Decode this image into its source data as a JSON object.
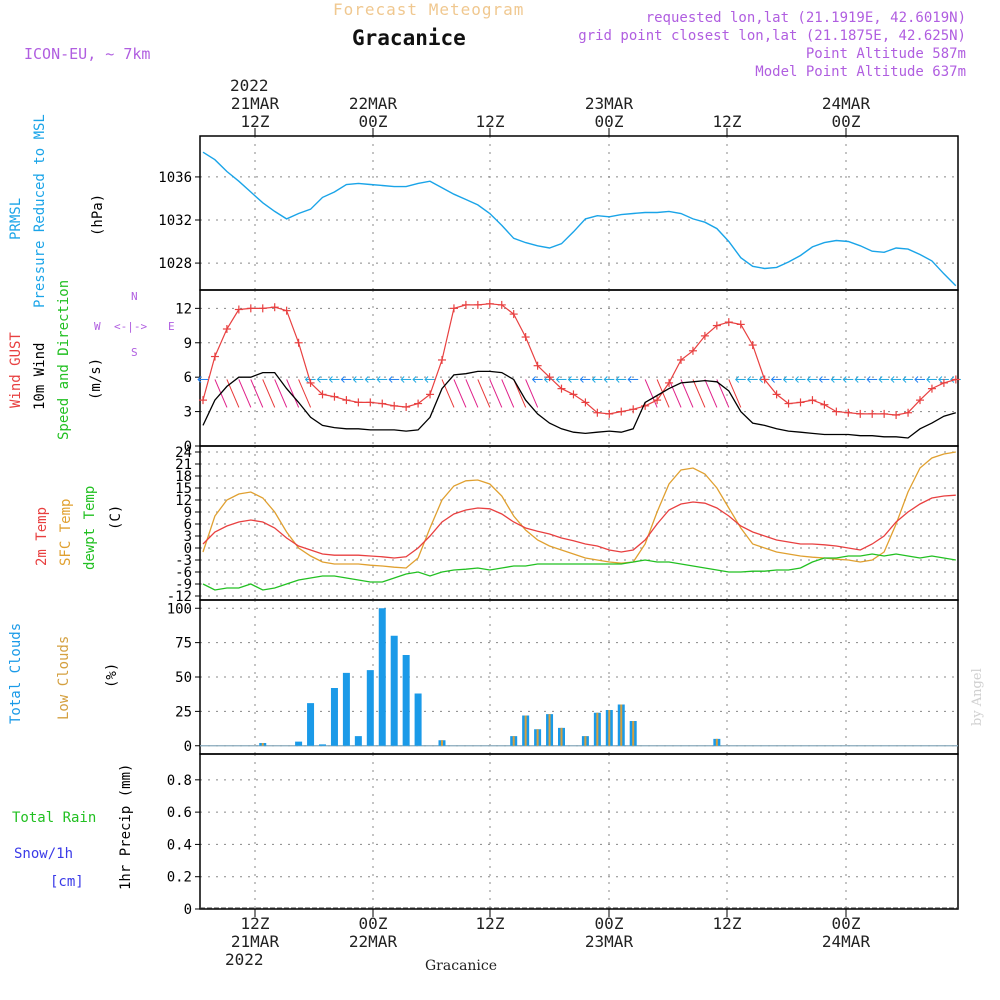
{
  "header": {
    "title": "Forecast Meteogram",
    "location": "Gracanice",
    "model": "ICON-EU, ~ 7km",
    "requested": "requested lon,lat (21.1919E, 42.6019N)",
    "gridpoint": "grid point closest lon,lat (21.1875E, 42.625N)",
    "point_alt": "Point Altitude 587m",
    "model_alt": "Model Point Altitude 637m",
    "footer_location": "Gracanice",
    "credit": "by Angel"
  },
  "time_axis": {
    "top_year": "2022",
    "top_dates": [
      "21MAR",
      "22MAR",
      "",
      "23MAR",
      "",
      "24MAR"
    ],
    "top_times": [
      "12Z",
      "00Z",
      "12Z",
      "00Z",
      "12Z",
      "00Z"
    ],
    "bottom_times": [
      "12Z",
      "00Z",
      "12Z",
      "00Z",
      "12Z",
      "00Z"
    ],
    "bottom_dates": [
      "21MAR",
      "22MAR",
      "",
      "23MAR",
      "",
      "24MAR"
    ],
    "bottom_year": "2022"
  },
  "labels": {
    "p1_a": "PRMSL",
    "p1_b": "Pressure Reduced to MSL",
    "p1_unit": "(hPa)",
    "p2_a": "Wind GUST",
    "p2_b": "10m Wind",
    "p2_c": "Speed and Direction",
    "p2_unit": "(m/s)",
    "compass_n": "N",
    "compass_s": "S",
    "compass_w": "W",
    "compass_e": "E",
    "p3_a": "2m Temp",
    "p3_b": "SFC Temp",
    "p3_c": "dewpt Temp",
    "p3_unit": "(C)",
    "p4_a": "Total Clouds",
    "p4_b": "Low Clouds",
    "p4_unit": "(%)",
    "p5_a": "Total  Rain",
    "p5_b": "Snow/1h",
    "p5_c": "[cm]",
    "p5_unit": "1hr Precip (mm)"
  },
  "colors": {
    "pressure": "#1aa4e8",
    "gust": "#e84040",
    "wind": "#000000",
    "temp2m": "#e84040",
    "sfctemp": "#e0a030",
    "dewpt": "#22c022",
    "totalclouds": "#1a9ae8",
    "lowclouds": "#d4a040",
    "rain": "#22c022",
    "snow": "#3a3ae8",
    "title_faded": "#f0c890",
    "purple": "#b05ee0"
  },
  "chart_data": [
    {
      "type": "line",
      "name": "pressure",
      "ylabel": "(hPa)",
      "yticks": [
        1028,
        1032,
        1036
      ],
      "ylim": [
        1025.5,
        1039.8
      ],
      "x_hours": [
        0,
        1,
        2,
        3,
        4,
        5,
        6,
        7,
        8,
        9,
        10,
        11,
        12,
        13,
        14,
        15,
        16,
        17,
        18,
        19,
        20,
        21,
        22,
        23,
        24,
        25,
        26,
        27,
        28,
        29,
        30,
        31,
        32,
        33,
        34,
        35,
        36,
        37,
        38,
        39,
        40,
        41,
        42,
        43,
        44,
        45,
        46,
        47,
        48,
        49,
        50,
        51,
        52,
        53,
        54,
        55,
        56,
        57,
        58,
        59,
        60,
        61,
        62,
        63
      ],
      "values": [
        1038.3,
        1037.6,
        1036.5,
        1035.6,
        1034.6,
        1033.6,
        1032.8,
        1032.1,
        1032.6,
        1033.0,
        1034.1,
        1034.6,
        1035.3,
        1035.4,
        1035.3,
        1035.2,
        1035.1,
        1035.1,
        1035.4,
        1035.6,
        1035.0,
        1034.4,
        1033.9,
        1033.4,
        1032.6,
        1031.5,
        1030.3,
        1029.9,
        1029.6,
        1029.4,
        1029.8,
        1030.9,
        1032.1,
        1032.4,
        1032.3,
        1032.5,
        1032.6,
        1032.7,
        1032.7,
        1032.8,
        1032.6,
        1032.1,
        1031.8,
        1031.2,
        1030.0,
        1028.5,
        1027.7,
        1027.5,
        1027.6,
        1028.1,
        1028.7,
        1029.5,
        1029.9,
        1030.1,
        1030.0,
        1029.6,
        1029.1,
        1029.0,
        1029.4,
        1029.3,
        1028.8,
        1028.2,
        1027.0,
        1025.9
      ]
    },
    {
      "type": "line",
      "name": "wind",
      "ylabel": "(m/s)",
      "yticks": [
        0,
        3,
        6,
        9,
        12
      ],
      "ylim": [
        0,
        13.6
      ],
      "x_hours": [
        0,
        1,
        2,
        3,
        4,
        5,
        6,
        7,
        8,
        9,
        10,
        11,
        12,
        13,
        14,
        15,
        16,
        17,
        18,
        19,
        20,
        21,
        22,
        23,
        24,
        25,
        26,
        27,
        28,
        29,
        30,
        31,
        32,
        33,
        34,
        35,
        36,
        37,
        38,
        39,
        40,
        41,
        42,
        43,
        44,
        45,
        46,
        47,
        48,
        49,
        50,
        51,
        52,
        53,
        54,
        55,
        56,
        57,
        58,
        59,
        60,
        61,
        62,
        63
      ],
      "gust": [
        4.0,
        7.8,
        10.2,
        11.9,
        12.0,
        12.0,
        12.1,
        11.8,
        9.0,
        5.5,
        4.5,
        4.3,
        4.0,
        3.8,
        3.8,
        3.7,
        3.5,
        3.4,
        3.7,
        4.5,
        7.5,
        12.0,
        12.3,
        12.3,
        12.4,
        12.3,
        11.5,
        9.5,
        7.0,
        6.0,
        5.0,
        4.5,
        3.8,
        2.9,
        2.8,
        3.0,
        3.2,
        3.5,
        4.0,
        5.5,
        7.5,
        8.3,
        9.6,
        10.5,
        10.8,
        10.6,
        8.8,
        5.8,
        4.5,
        3.7,
        3.8,
        4.0,
        3.6,
        3.0,
        2.9,
        2.8,
        2.8,
        2.8,
        2.7,
        2.9,
        4.0,
        5.0,
        5.5,
        5.8
      ],
      "wind10m": [
        1.8,
        4.0,
        5.2,
        6.0,
        6.0,
        6.4,
        6.4,
        5.0,
        3.8,
        2.5,
        1.8,
        1.6,
        1.5,
        1.5,
        1.4,
        1.4,
        1.4,
        1.3,
        1.4,
        2.5,
        5.0,
        6.2,
        6.3,
        6.5,
        6.5,
        6.4,
        5.8,
        4.0,
        2.8,
        2.0,
        1.5,
        1.2,
        1.1,
        1.2,
        1.3,
        1.2,
        1.5,
        3.8,
        4.4,
        5.0,
        5.5,
        5.6,
        5.7,
        5.6,
        4.8,
        3.0,
        2.0,
        1.8,
        1.5,
        1.3,
        1.2,
        1.1,
        1.0,
        1.0,
        1.0,
        0.9,
        0.9,
        0.8,
        0.8,
        0.7,
        1.5,
        2.0,
        2.6,
        2.9
      ]
    },
    {
      "type": "line",
      "name": "temperature",
      "ylabel": "(C)",
      "yticks": [
        -12,
        -9,
        -6,
        -3,
        0,
        3,
        6,
        9,
        12,
        15,
        18,
        21,
        24
      ],
      "ylim": [
        -13,
        25.5
      ],
      "x_hours": [
        0,
        1,
        2,
        3,
        4,
        5,
        6,
        7,
        8,
        9,
        10,
        11,
        12,
        13,
        14,
        15,
        16,
        17,
        18,
        19,
        20,
        21,
        22,
        23,
        24,
        25,
        26,
        27,
        28,
        29,
        30,
        31,
        32,
        33,
        34,
        35,
        36,
        37,
        38,
        39,
        40,
        41,
        42,
        43,
        44,
        45,
        46,
        47,
        48,
        49,
        50,
        51,
        52,
        53,
        54,
        55,
        56,
        57,
        58,
        59,
        60,
        61,
        62,
        63
      ],
      "temp2m": [
        1.0,
        4.0,
        5.5,
        6.5,
        7.0,
        6.5,
        5.0,
        2.5,
        0.5,
        -0.5,
        -1.5,
        -1.8,
        -1.8,
        -1.8,
        -2.0,
        -2.2,
        -2.5,
        -2.2,
        0.0,
        3.0,
        6.5,
        8.5,
        9.5,
        10.0,
        9.8,
        8.5,
        6.5,
        5.0,
        4.2,
        3.5,
        2.5,
        1.8,
        1.0,
        0.5,
        -0.5,
        -1.0,
        -0.5,
        2.0,
        6.0,
        9.5,
        11.0,
        11.5,
        11.2,
        10.0,
        8.0,
        5.5,
        4.0,
        3.0,
        2.0,
        1.5,
        1.0,
        1.0,
        0.8,
        0.5,
        0.0,
        -0.5,
        1.0,
        3.0,
        6.5,
        9.0,
        11.0,
        12.5,
        13.0,
        13.2
      ],
      "sfctemp": [
        -1.0,
        8.0,
        12.0,
        13.5,
        14.0,
        12.5,
        9.0,
        4.0,
        0.0,
        -2.0,
        -3.5,
        -4.0,
        -4.0,
        -4.0,
        -4.3,
        -4.5,
        -4.8,
        -5.0,
        -2.5,
        5.0,
        12.0,
        15.5,
        16.8,
        17.0,
        16.0,
        13.0,
        8.0,
        4.5,
        2.0,
        0.5,
        -0.5,
        -1.5,
        -2.5,
        -3.0,
        -3.5,
        -3.8,
        -3.5,
        1.0,
        9.0,
        16.0,
        19.5,
        20.0,
        18.5,
        15.0,
        10.0,
        5.0,
        1.0,
        0.0,
        -1.0,
        -1.5,
        -2.0,
        -2.3,
        -2.5,
        -2.8,
        -3.0,
        -3.5,
        -3.0,
        -1.0,
        6.0,
        14.0,
        20.0,
        22.5,
        23.5,
        24.0
      ],
      "dewpt": [
        -9.0,
        -10.5,
        -10.0,
        -10.0,
        -9.0,
        -10.5,
        -10.0,
        -9.0,
        -8.0,
        -7.5,
        -7.0,
        -7.0,
        -7.5,
        -8.0,
        -8.5,
        -8.5,
        -7.5,
        -6.5,
        -6.0,
        -7.0,
        -6.0,
        -5.5,
        -5.3,
        -5.0,
        -5.5,
        -5.0,
        -4.5,
        -4.5,
        -4.0,
        -4.0,
        -4.0,
        -4.0,
        -4.0,
        -4.0,
        -4.0,
        -4.0,
        -3.5,
        -3.0,
        -3.5,
        -3.5,
        -4.0,
        -4.5,
        -5.0,
        -5.5,
        -6.0,
        -6.0,
        -5.8,
        -5.8,
        -5.5,
        -5.5,
        -5.0,
        -3.5,
        -2.5,
        -2.5,
        -2.0,
        -2.0,
        -1.5,
        -2.0,
        -1.5,
        -2.0,
        -2.5,
        -2.0,
        -2.5,
        -3.0
      ]
    },
    {
      "type": "bar",
      "name": "clouds",
      "ylabel": "(%)",
      "yticks": [
        0,
        25,
        50,
        75,
        100
      ],
      "ylim": [
        -6,
        106
      ],
      "x_hours": [
        5,
        8,
        9,
        10,
        11,
        12,
        13,
        14,
        15,
        16,
        17,
        18,
        19,
        20,
        26,
        27,
        28,
        29,
        30,
        31,
        32,
        33,
        34,
        35,
        36,
        43
      ],
      "total": [
        2,
        3,
        31,
        1,
        42,
        53,
        7,
        55,
        100,
        80,
        66,
        38,
        0,
        4,
        7,
        22,
        12,
        23,
        13,
        0,
        7,
        24,
        26,
        30,
        18,
        5
      ],
      "low": [
        2,
        0,
        0,
        0,
        0,
        0,
        0,
        0,
        0,
        0,
        0,
        0,
        0,
        4,
        7,
        22,
        12,
        23,
        13,
        0,
        7,
        24,
        26,
        30,
        18,
        5
      ]
    },
    {
      "type": "bar",
      "name": "precip",
      "ylabel": "1hr Precip (mm)",
      "yticks": [
        0,
        0.2,
        0.4,
        0.6,
        0.8
      ],
      "ylim": [
        0,
        0.96
      ],
      "rain": [],
      "snow": []
    }
  ]
}
